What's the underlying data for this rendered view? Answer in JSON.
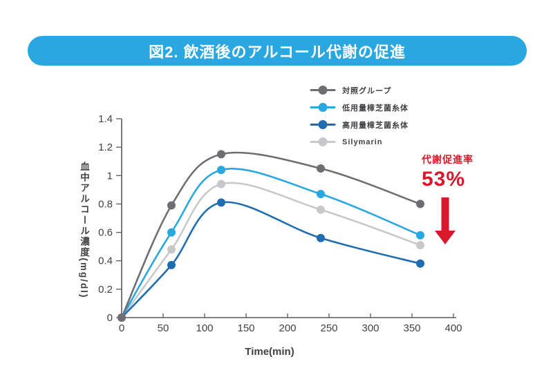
{
  "banner": {
    "title": "図2. 飲酒後のアルコール代謝の促進",
    "bg_color": "#29A7E0",
    "text_color": "#FFFFFF"
  },
  "chart_data": {
    "type": "line",
    "title": "図2. 飲酒後のアルコール代謝の促進",
    "x": [
      0,
      60,
      120,
      240,
      360
    ],
    "series": [
      {
        "name": "対照グループ",
        "color": "#6D6E71",
        "values": [
          0,
          0.79,
          1.15,
          1.05,
          0.8
        ]
      },
      {
        "name": "低用量樟芝菌糸体",
        "color": "#29A7E0",
        "values": [
          0,
          0.6,
          1.04,
          0.87,
          0.58
        ]
      },
      {
        "name": "高用量樟芝菌糸体",
        "color": "#1F6CB0",
        "values": [
          0,
          0.37,
          0.81,
          0.56,
          0.38
        ]
      },
      {
        "name": "Silymarin",
        "color": "#C7C8CA",
        "values": [
          0,
          0.48,
          0.94,
          0.76,
          0.51
        ]
      }
    ],
    "xlabel": "Time(min)",
    "ylabel": "血中アルコール濃度(mg/dl)",
    "xlim": [
      0,
      400
    ],
    "ylim": [
      0,
      1.4
    ],
    "x_ticks": [
      0,
      50,
      100,
      150,
      200,
      250,
      300,
      350,
      400
    ],
    "y_ticks": [
      0,
      0.2,
      0.4,
      0.6,
      0.8,
      1,
      1.2,
      1.4
    ],
    "grid": false,
    "legend_position": "upper-right",
    "axis_color": "#58595B",
    "tick_label_color": "#414042"
  },
  "annotation": {
    "label": "代謝促進率",
    "value": "53%",
    "color": "#D9182B",
    "arrow": "down"
  }
}
